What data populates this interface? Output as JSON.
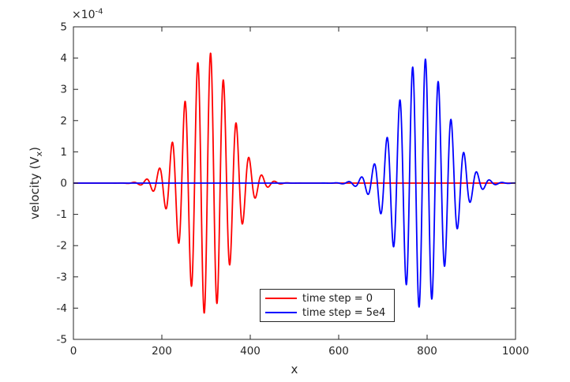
{
  "chart_data": {
    "type": "line",
    "title": "",
    "xlabel": "x",
    "ylabel": {
      "text": "velocity (V",
      "subscript": "x",
      "suffix": ")"
    },
    "y_scale_label": {
      "base": "×10",
      "exponent": "-4"
    },
    "xlim": [
      0,
      1000
    ],
    "ylim": [
      -0.0005,
      0.0005
    ],
    "xticks": [
      0,
      200,
      400,
      600,
      800,
      1000
    ],
    "yticks_scaled": [
      -5,
      -4,
      -3,
      -2,
      -1,
      0,
      1,
      2,
      3,
      4,
      5
    ],
    "y_unit_scale": 0.0001,
    "grid": false,
    "box": true,
    "tick_direction": "in",
    "axis_color": "#262626",
    "background": "#ffffff",
    "series": [
      {
        "name": "time step = 0",
        "color": "#ff0000",
        "line_width": 1.8,
        "model": "gaussian_modulated_sine",
        "params": {
          "center": 303,
          "sigma": 52,
          "peak_amplitude": 0.00042,
          "wavelength": 29,
          "baseline": 0,
          "x_start": 0,
          "x_end": 1000,
          "x_step": 0.5
        }
      },
      {
        "name": "time step = 5e4",
        "color": "#0000ff",
        "line_width": 1.8,
        "model": "gaussian_modulated_sine",
        "params": {
          "center": 789,
          "sigma": 56,
          "peak_amplitude": 0.0004,
          "wavelength": 29,
          "baseline": 0,
          "x_start": 0,
          "x_end": 1000,
          "x_step": 0.5
        }
      }
    ],
    "legend": {
      "position": "south-inside",
      "border_color": "#262626",
      "entries": [
        {
          "label": "time step = 0",
          "color": "#ff0000"
        },
        {
          "label": "time step = 5e4",
          "color": "#0000ff"
        }
      ]
    }
  }
}
